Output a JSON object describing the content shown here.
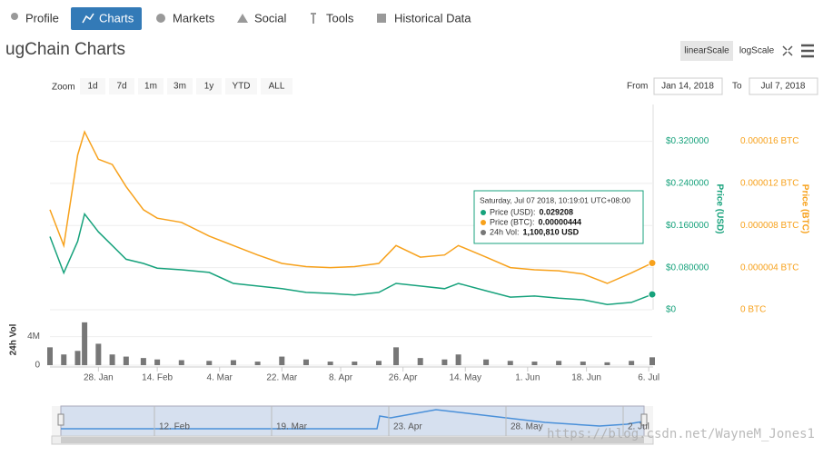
{
  "tabs": [
    "Profile",
    "Charts",
    "Markets",
    "Social",
    "Tools",
    "Historical Data"
  ],
  "header": {
    "title": "ugChain Charts",
    "scale_buttons": [
      "linearScale",
      "logScale"
    ]
  },
  "range_selector": {
    "zoom_label": "Zoom",
    "buttons": [
      "1d",
      "7d",
      "1m",
      "3m",
      "1y",
      "YTD",
      "ALL"
    ],
    "from_label": "From",
    "from": "Jan 14, 2018",
    "to_label": "To",
    "to": "Jul 7, 2018"
  },
  "tooltip": {
    "date": "Saturday, Jul 07 2018, 10:19:01 UTC+08:00",
    "items": [
      {
        "label": "Price (USD):",
        "value": "0.029208"
      },
      {
        "label": "Price (BTC):",
        "value": "0.00000444"
      },
      {
        "label": "24h Vol:",
        "value": "1,100,810 USD"
      }
    ]
  },
  "navigator": {
    "labels": [
      "12. Feb",
      "19. Mar",
      "23. Apr",
      "28. May",
      "2. Jul"
    ]
  },
  "watermark": "https://blog.csdn.net/WayneM_Jones1",
  "chart_data": [
    {
      "type": "line",
      "x": [
        "2018-01-14",
        "2018-01-18",
        "2018-01-22",
        "2018-01-24",
        "2018-01-28",
        "2018-02-01",
        "2018-02-05",
        "2018-02-10",
        "2018-02-14",
        "2018-02-21",
        "2018-03-01",
        "2018-03-08",
        "2018-03-15",
        "2018-03-22",
        "2018-03-29",
        "2018-04-05",
        "2018-04-12",
        "2018-04-19",
        "2018-04-24",
        "2018-05-01",
        "2018-05-08",
        "2018-05-12",
        "2018-05-20",
        "2018-05-27",
        "2018-06-03",
        "2018-06-10",
        "2018-06-17",
        "2018-06-24",
        "2018-07-01",
        "2018-07-07"
      ],
      "xlim": [
        "2018-01-14",
        "2018-07-07"
      ],
      "xticks": [
        {
          "value": "2018-01-28",
          "label": "28. Jan"
        },
        {
          "value": "2018-02-14",
          "label": "14. Feb"
        },
        {
          "value": "2018-03-04",
          "label": "4. Mar"
        },
        {
          "value": "2018-03-22",
          "label": "22. Mar"
        },
        {
          "value": "2018-04-08",
          "label": "8. Apr"
        },
        {
          "value": "2018-04-26",
          "label": "26. Apr"
        },
        {
          "value": "2018-05-14",
          "label": "14. May"
        },
        {
          "value": "2018-06-01",
          "label": "1. Jun"
        },
        {
          "value": "2018-06-18",
          "label": "18. Jun"
        },
        {
          "value": "2018-07-06",
          "label": "6. Jul"
        }
      ],
      "ylim": [
        0,
        0.39
      ],
      "yticks": [
        {
          "value": 0,
          "label": "$0"
        },
        {
          "value": 0.08,
          "label": "$0.080000"
        },
        {
          "value": 0.16,
          "label": "$0.160000"
        },
        {
          "value": 0.24,
          "label": "$0.240000"
        },
        {
          "value": 0.32,
          "label": "$0.320000"
        }
      ],
      "y2lim": [
        0,
        1.95e-05
      ],
      "y2ticks": [
        {
          "value": 0,
          "label": "0 BTC"
        },
        {
          "value": 4e-06,
          "label": "0.000004 BTC"
        },
        {
          "value": 8e-06,
          "label": "0.000008 BTC"
        },
        {
          "value": 1.2e-05,
          "label": "0.000012 BTC"
        },
        {
          "value": 1.6e-05,
          "label": "0.000016 BTC"
        }
      ],
      "grid": true,
      "series": [
        {
          "name": "Price (USD)",
          "color": "#17a27c",
          "values": [
            0.139,
            0.07,
            0.13,
            0.182,
            0.148,
            0.122,
            0.096,
            0.088,
            0.079,
            0.076,
            0.071,
            0.05,
            0.045,
            0.04,
            0.033,
            0.031,
            0.028,
            0.033,
            0.05,
            0.045,
            0.04,
            0.05,
            0.036,
            0.024,
            0.026,
            0.022,
            0.019,
            0.01,
            0.014,
            0.029208
          ]
        },
        {
          "name": "Price (BTC)",
          "color": "#f7a11b",
          "axis": "y2",
          "values": [
            9.5e-06,
            6.1e-06,
            1.47e-05,
            1.69e-05,
            1.43e-05,
            1.38e-05,
            1.17e-05,
            9.5e-06,
            8.7e-06,
            8.3e-06,
            7e-06,
            6.1e-06,
            5.2e-06,
            4.4e-06,
            4.1e-06,
            4e-06,
            4.1e-06,
            4.4e-06,
            6.1e-06,
            5e-06,
            5.2e-06,
            6.1e-06,
            5e-06,
            4e-06,
            3.8e-06,
            3.7e-06,
            3.4e-06,
            2.5e-06,
            3.5e-06,
            4.44e-06
          ]
        }
      ]
    },
    {
      "type": "bar",
      "ylim": [
        0,
        7000000
      ],
      "yticks": [
        0,
        {
          "value": 4000000,
          "label": "4M"
        }
      ],
      "series": [
        {
          "name": "24h Vol",
          "color": "#777777",
          "values": [
            2500000,
            1500000,
            2000000,
            6000000,
            3000000,
            1500000,
            1200000,
            1000000,
            800000,
            700000,
            600000,
            700000,
            500000,
            1200000,
            800000,
            500000,
            500000,
            600000,
            2500000,
            1000000,
            800000,
            1500000,
            800000,
            600000,
            500000,
            600000,
            500000,
            400000,
            600000,
            1100810
          ]
        }
      ]
    }
  ]
}
